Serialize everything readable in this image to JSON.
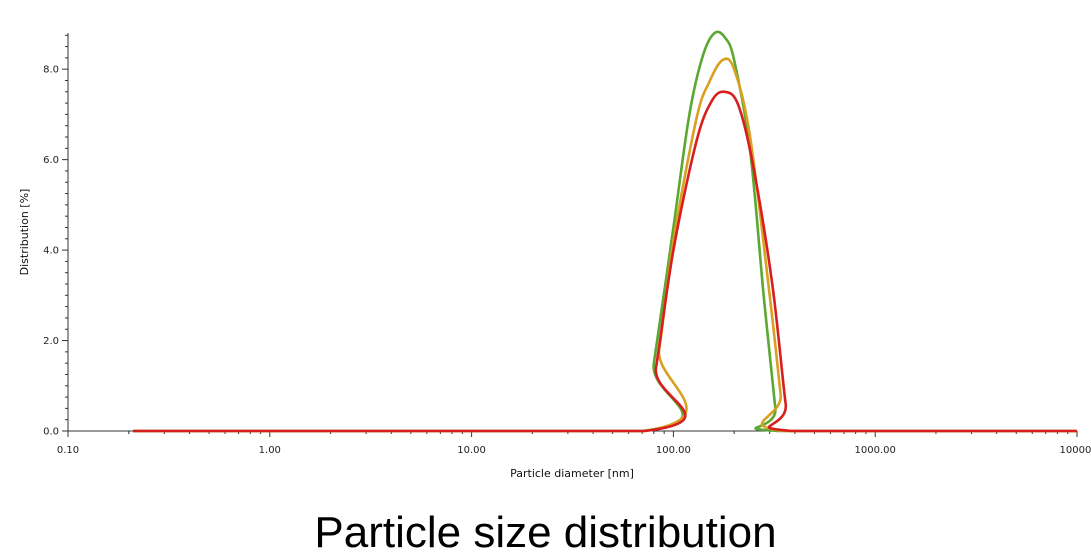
{
  "caption": "Particle size distribution",
  "chart_data": {
    "type": "line",
    "xscale": "log",
    "xlabel": "Particle diameter [nm]",
    "ylabel": "Distribution [%]",
    "xlim": [
      0.1,
      10000
    ],
    "ylim": [
      0,
      8.8
    ],
    "x_ticks": [
      0.1,
      1,
      10,
      100,
      1000,
      10000
    ],
    "x_tick_labels": [
      "0.10",
      "1.00",
      "10.00",
      "100.00",
      "1000.00",
      "10000."
    ],
    "y_ticks": [
      0,
      2,
      4,
      6,
      8
    ],
    "y_tick_labels": [
      "0.0",
      "2.0",
      "4.0",
      "6.0",
      "8.0"
    ],
    "grid": false,
    "series": [
      {
        "color": "#5aa832",
        "points": [
          [
            0.21,
            0
          ],
          [
            70,
            0
          ],
          [
            80,
            1.5
          ],
          [
            100,
            4.5
          ],
          [
            120,
            7.0
          ],
          [
            140,
            8.3
          ],
          [
            160,
            8.8
          ],
          [
            180,
            8.7
          ],
          [
            200,
            8.2
          ],
          [
            240,
            6.2
          ],
          [
            280,
            3.0
          ],
          [
            320,
            0.5
          ],
          [
            330,
            0
          ],
          [
            10000,
            0
          ]
        ]
      },
      {
        "color": "#d9a020",
        "points": [
          [
            0.21,
            0
          ],
          [
            72,
            0
          ],
          [
            85,
            1.8
          ],
          [
            100,
            4.2
          ],
          [
            130,
            6.9
          ],
          [
            150,
            7.7
          ],
          [
            175,
            8.2
          ],
          [
            200,
            8.0
          ],
          [
            240,
            6.5
          ],
          [
            300,
            3.0
          ],
          [
            340,
            0.8
          ],
          [
            355,
            0
          ],
          [
            10000,
            0
          ]
        ]
      },
      {
        "color": "#d81e1e",
        "points": [
          [
            0.21,
            0
          ],
          [
            72,
            0
          ],
          [
            82,
            1.4
          ],
          [
            100,
            4.0
          ],
          [
            130,
            6.4
          ],
          [
            155,
            7.3
          ],
          [
            180,
            7.5
          ],
          [
            210,
            7.2
          ],
          [
            250,
            5.8
          ],
          [
            310,
            3.2
          ],
          [
            360,
            0.6
          ],
          [
            385,
            0
          ],
          [
            10000,
            0
          ]
        ]
      }
    ]
  }
}
